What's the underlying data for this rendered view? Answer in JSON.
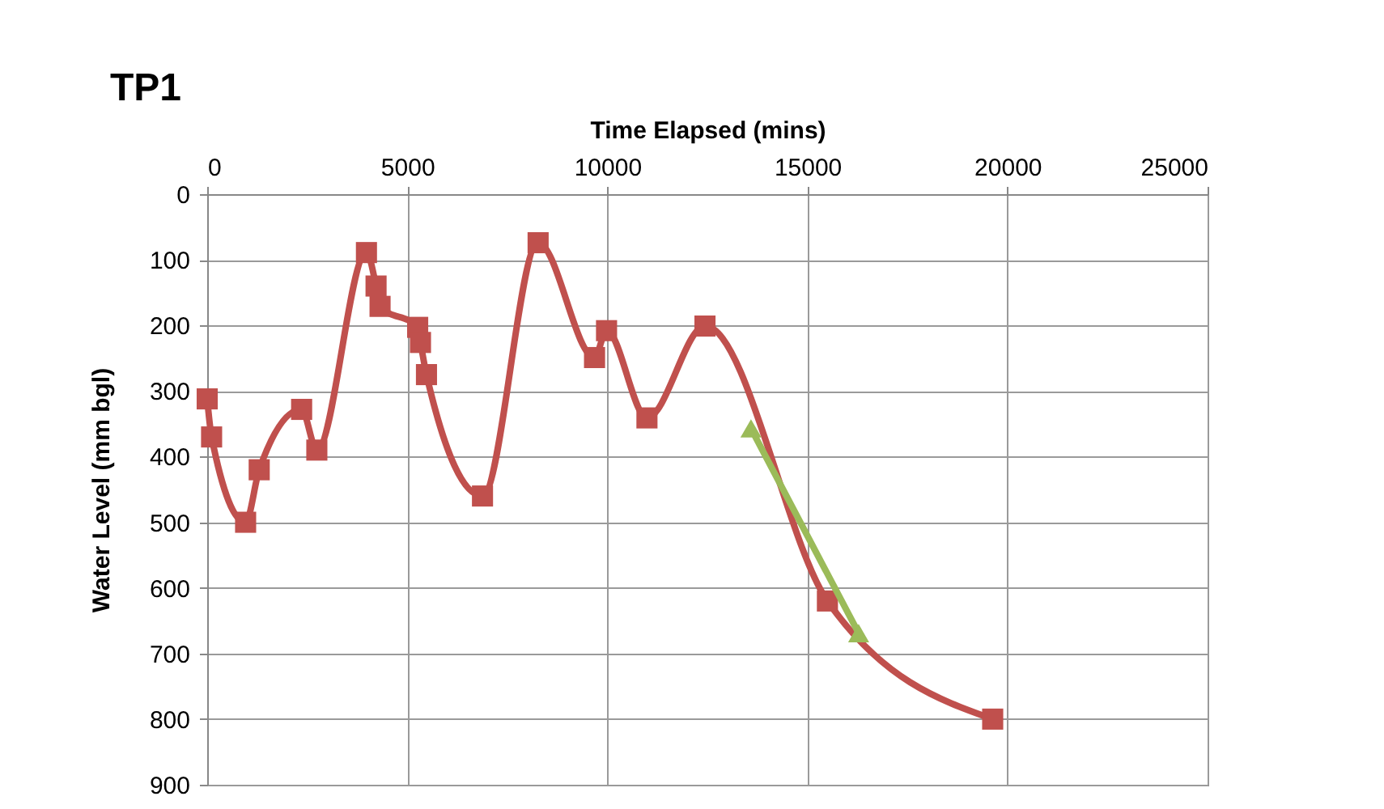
{
  "chart_data": {
    "type": "line",
    "title": "TP1",
    "xlabel": "Time Elapsed (mins)",
    "ylabel": "Water Level (mm bgl)",
    "xlim": [
      0,
      25000
    ],
    "xticks": [
      0,
      5000,
      10000,
      15000,
      20000,
      25000
    ],
    "ylim": [
      900,
      0
    ],
    "yticks": [
      0,
      100,
      200,
      300,
      400,
      500,
      600,
      700,
      800,
      900
    ],
    "grid": true,
    "series": [
      {
        "color": "#c0504d",
        "marker": "square",
        "x": [
          0,
          110,
          960,
          1300,
          2360,
          2740,
          3980,
          4220,
          4320,
          5260,
          5330,
          5480,
          6880,
          8270,
          9680,
          9980,
          10990,
          12440,
          15500,
          19630
        ],
        "values": [
          312,
          370,
          500,
          420,
          328,
          390,
          89,
          140,
          171,
          203,
          226,
          275,
          460,
          74,
          249,
          208,
          341,
          201,
          620,
          800
        ]
      },
      {
        "color": "#9bbb59",
        "marker": "triangle",
        "x": [
          13590,
          16280
        ],
        "values": [
          357,
          669
        ]
      }
    ]
  }
}
